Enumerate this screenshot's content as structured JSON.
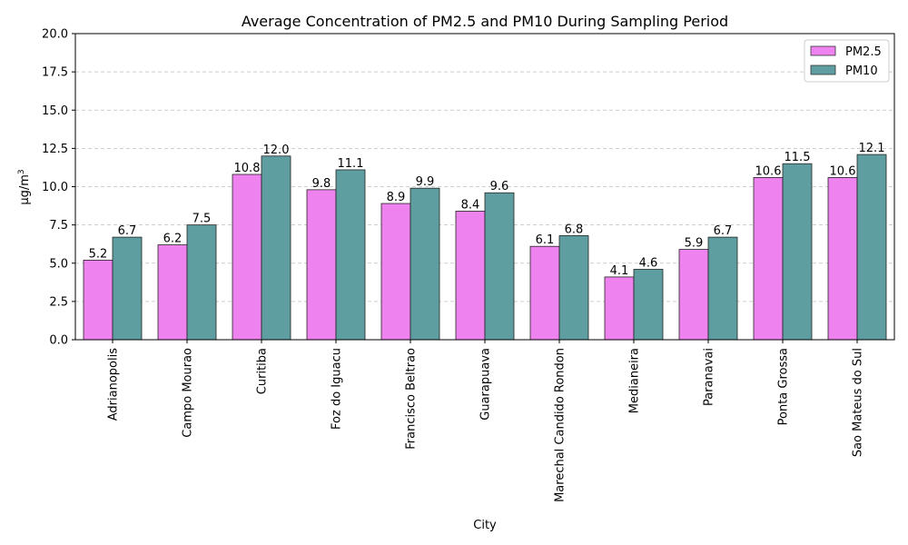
{
  "chart_data": {
    "type": "bar",
    "title": "Average Concentration of PM2.5 and PM10 During Sampling Period",
    "xlabel": "City",
    "ylabel_main": "μg/m",
    "ylabel_sup": "3",
    "ylim": [
      0,
      20
    ],
    "yticks": [
      "0.0",
      "2.5",
      "5.0",
      "7.5",
      "10.0",
      "12.5",
      "15.0",
      "17.5",
      "20.0"
    ],
    "grid": "y-dashed",
    "legend_position": "top-right",
    "categories": [
      "Adrianopolis",
      "Campo Mourao",
      "Curitiba",
      "Foz do Iguacu",
      "Francisco Beltrao",
      "Guarapuava",
      "Marechal Candido Rondon",
      "Medianeira",
      "Paranavai",
      "Ponta Grossa",
      "Sao Mateus do Sul"
    ],
    "series": [
      {
        "name": "PM2.5",
        "color": "#ee82ee",
        "values": [
          5.2,
          6.2,
          10.8,
          9.8,
          8.9,
          8.4,
          6.1,
          4.1,
          5.9,
          10.6,
          10.6
        ],
        "labels": [
          "5.2",
          "6.2",
          "10.8",
          "9.8",
          "8.9",
          "8.4",
          "6.1",
          "4.1",
          "5.9",
          "10.6",
          "10.6"
        ]
      },
      {
        "name": "PM10",
        "color": "#5f9ea0",
        "values": [
          6.7,
          7.5,
          12.0,
          11.1,
          9.9,
          9.6,
          6.8,
          4.6,
          6.7,
          11.5,
          12.1
        ],
        "labels": [
          "6.7",
          "7.5",
          "12.0",
          "11.1",
          "9.9",
          "9.6",
          "6.8",
          "4.6",
          "6.7",
          "11.5",
          "12.1"
        ]
      }
    ]
  }
}
